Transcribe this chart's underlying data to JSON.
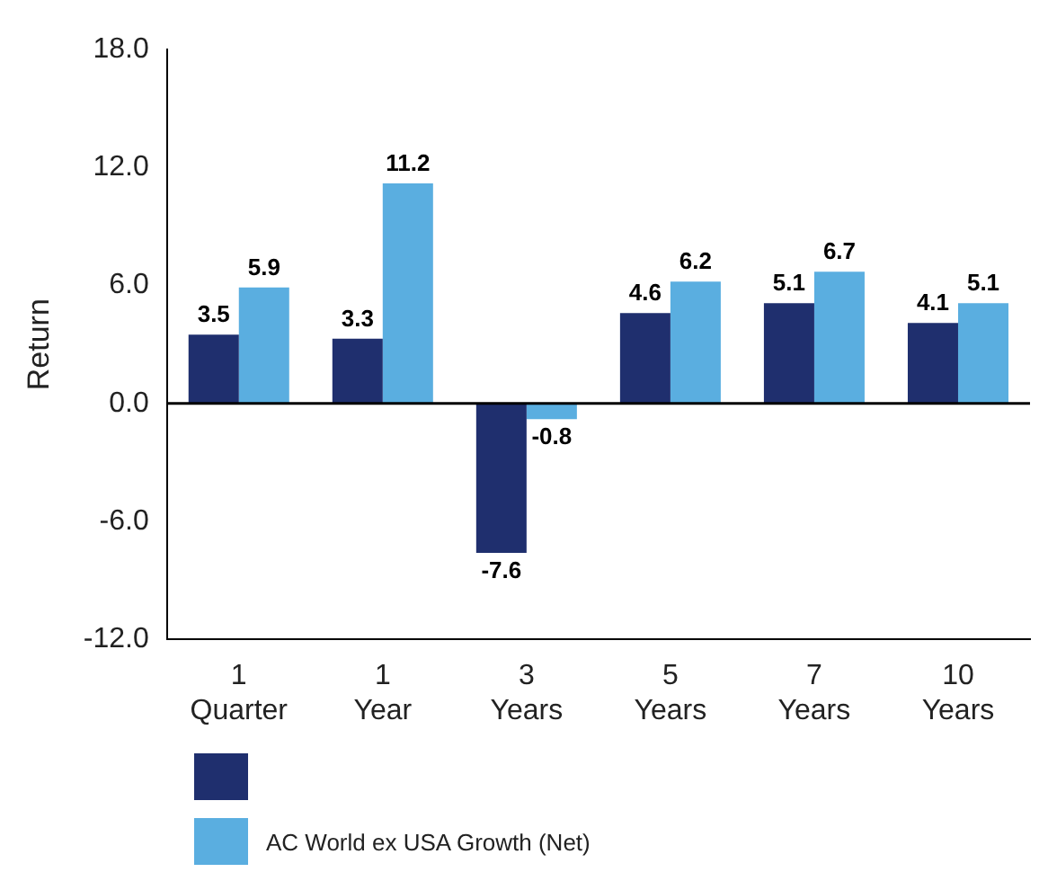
{
  "chart_data": {
    "type": "bar",
    "ylabel": "Return",
    "categories": [
      "1 Quarter",
      "1 Year",
      "3 Years",
      "5 Years",
      "7 Years",
      "10 Years"
    ],
    "series": [
      {
        "name": null,
        "color": "#1f2f6e",
        "values": [
          3.5,
          3.3,
          -7.6,
          4.6,
          5.1,
          4.1
        ]
      },
      {
        "name": "AC World ex USA Growth (Net)",
        "color": "#5aaee0",
        "values": [
          5.9,
          11.2,
          -0.8,
          6.2,
          6.7,
          5.1
        ]
      }
    ],
    "ylim": [
      -12,
      18
    ],
    "yticks": [
      {
        "value": -12,
        "label": "-12.0"
      },
      {
        "value": -6,
        "label": "-6.0"
      },
      {
        "value": 0,
        "label": "0.0"
      },
      {
        "value": 6,
        "label": "6.0"
      },
      {
        "value": 12,
        "label": "12.0"
      },
      {
        "value": 18,
        "label": "18.0"
      }
    ],
    "ref_lines": [
      {
        "axis": "y",
        "value": 0,
        "color": "#000000"
      }
    ],
    "grid": false,
    "data_labels": true,
    "legend": "bottom"
  }
}
